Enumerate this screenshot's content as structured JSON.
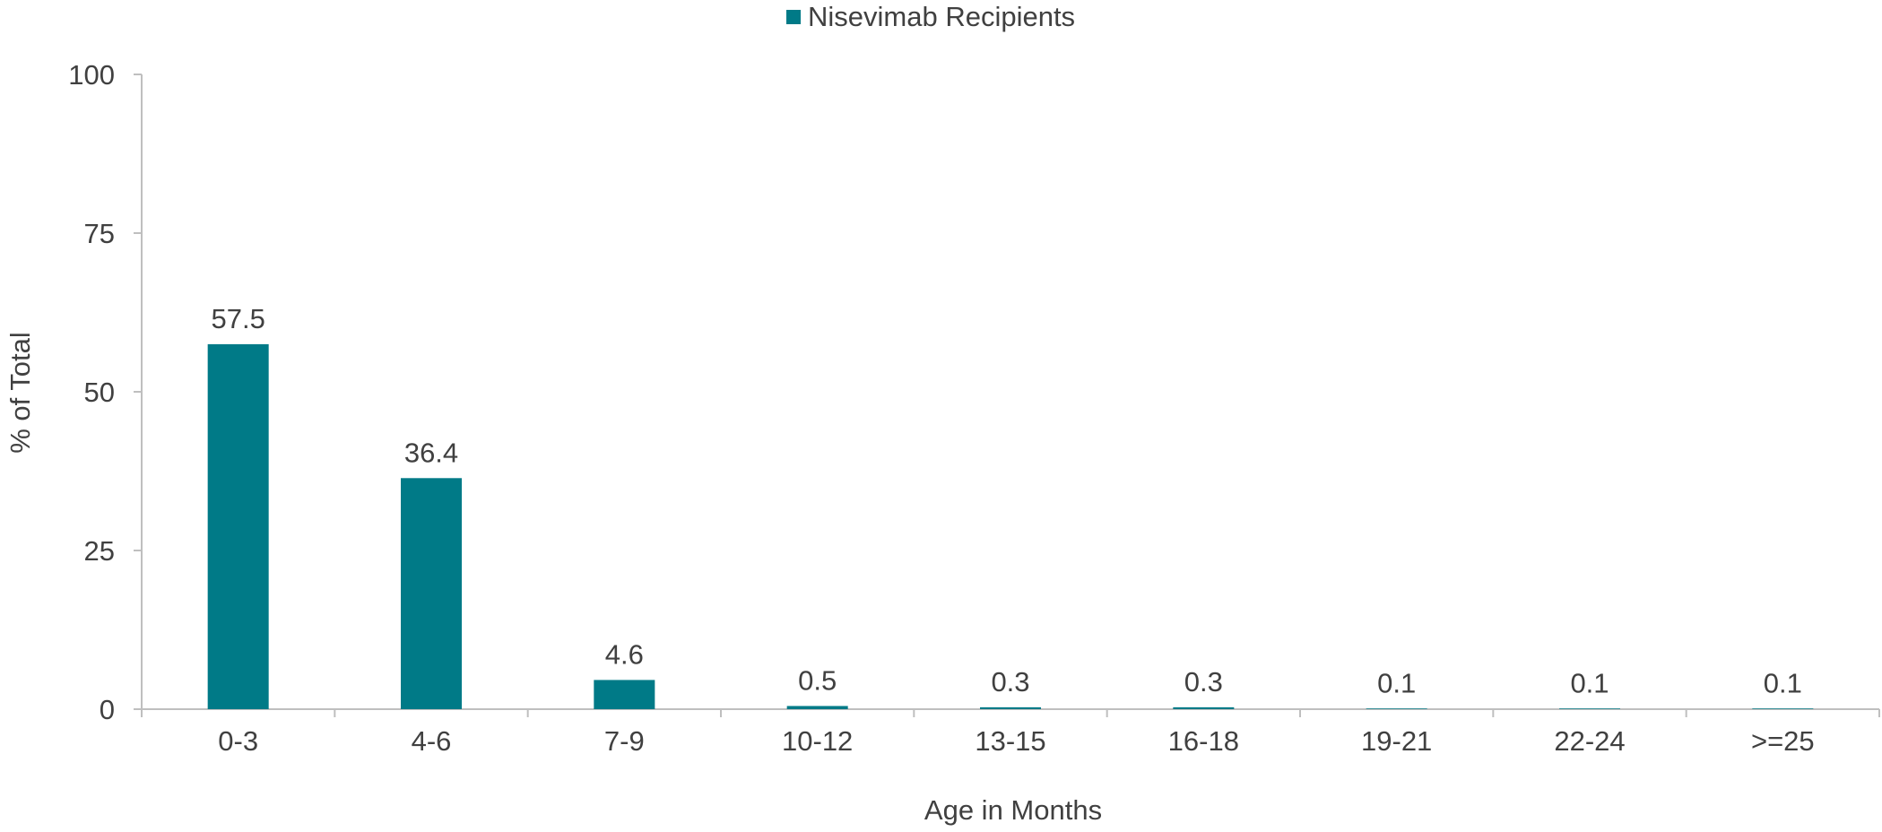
{
  "chart_data": {
    "type": "bar",
    "title": "",
    "xlabel": "Age in Months",
    "ylabel": "% of Total",
    "categories": [
      "0-3",
      "4-6",
      "7-9",
      "10-12",
      "13-15",
      "16-18",
      "19-21",
      "22-24",
      ">=25"
    ],
    "series": [
      {
        "name": "Nisevimab Recipients",
        "values": [
          57.5,
          36.4,
          4.6,
          0.5,
          0.3,
          0.3,
          0.1,
          0.1,
          0.1
        ],
        "labels": [
          "57.5",
          "36.4",
          "4.6",
          "0.5",
          "0.3",
          "0.3",
          "0.1",
          "0.1",
          "0.1"
        ],
        "color": "#007A87"
      }
    ],
    "ylim": [
      0,
      100
    ],
    "yticks": [
      0,
      25,
      50,
      75,
      100
    ],
    "grid": false,
    "legend": "top-center"
  }
}
